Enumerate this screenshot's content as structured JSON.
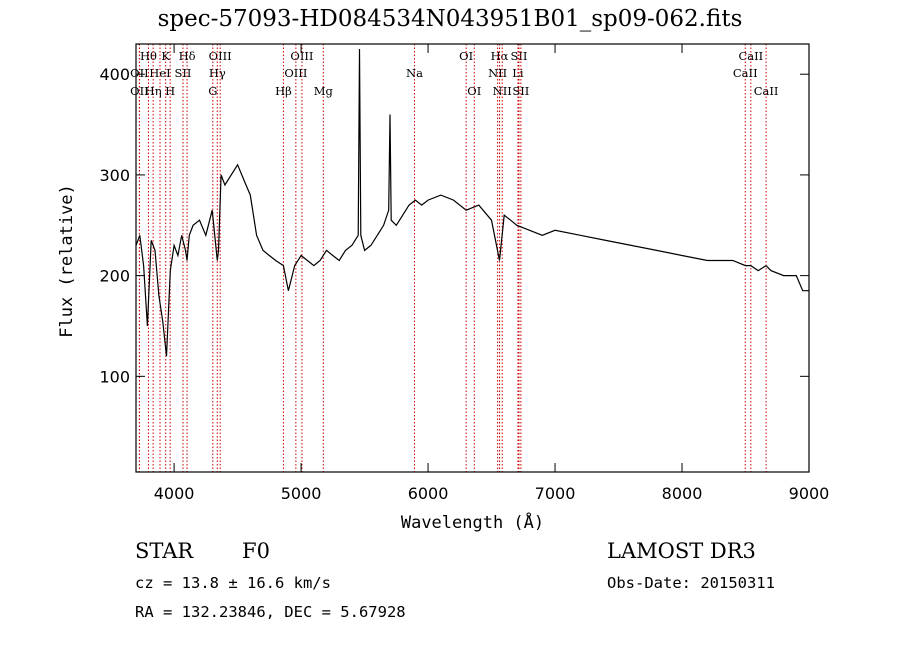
{
  "chart_data": {
    "type": "line",
    "title": "spec-57093-HD084534N043951B01_sp09-062.fits",
    "xlabel": "Wavelength (Å)",
    "ylabel": "Flux (relative)",
    "xlim": [
      3700,
      9000
    ],
    "ylim": [
      5,
      430
    ],
    "xticks": [
      4000,
      5000,
      6000,
      7000,
      8000,
      9000
    ],
    "yticks": [
      100,
      200,
      300,
      400
    ],
    "grid": false,
    "colors": {
      "spectrum": "#000000",
      "line_markers": "#cc0000"
    },
    "series": [
      {
        "x": [
          3700,
          3730,
          3760,
          3790,
          3820,
          3850,
          3880,
          3910,
          3940,
          3970,
          4000,
          4030,
          4060,
          4090,
          4102,
          4120,
          4150,
          4200,
          4250,
          4300,
          4340,
          4350,
          4370,
          4400,
          4450,
          4500,
          4550,
          4600,
          4650,
          4700,
          4750,
          4800,
          4861,
          4900,
          4950,
          5000,
          5050,
          5100,
          5150,
          5200,
          5250,
          5300,
          5350,
          5400,
          5450,
          5460,
          5470,
          5500,
          5550,
          5600,
          5650,
          5690,
          5700,
          5710,
          5750,
          5800,
          5850,
          5900,
          5950,
          6000,
          6100,
          6200,
          6300,
          6400,
          6500,
          6563,
          6600,
          6650,
          6700,
          6800,
          6900,
          7000,
          7200,
          7400,
          7600,
          7800,
          8000,
          8200,
          8400,
          8498,
          8542,
          8600,
          8662,
          8700,
          8800,
          8900,
          8950,
          9000
        ],
        "y": [
          230,
          240,
          210,
          150,
          235,
          225,
          180,
          155,
          120,
          205,
          230,
          220,
          240,
          225,
          215,
          240,
          250,
          255,
          240,
          265,
          215,
          225,
          300,
          290,
          300,
          310,
          295,
          280,
          240,
          225,
          220,
          215,
          210,
          185,
          210,
          220,
          215,
          210,
          215,
          225,
          220,
          215,
          225,
          230,
          240,
          425,
          240,
          225,
          230,
          240,
          250,
          265,
          360,
          255,
          250,
          260,
          270,
          275,
          270,
          275,
          280,
          275,
          265,
          270,
          255,
          215,
          260,
          255,
          250,
          245,
          240,
          245,
          240,
          235,
          230,
          225,
          220,
          215,
          215,
          210,
          210,
          205,
          210,
          205,
          200,
          200,
          185,
          185
        ]
      }
    ],
    "line_markers": [
      {
        "label": "Hθ",
        "x": 3798,
        "row": 1
      },
      {
        "label": "OII",
        "x": 3727,
        "row": 2
      },
      {
        "label": "OII",
        "x": 3727,
        "row": 3
      },
      {
        "label": "K",
        "x": 3934,
        "row": 1
      },
      {
        "label": "HeI",
        "x": 3889,
        "row": 2
      },
      {
        "label": "Hη",
        "x": 3835,
        "row": 3
      },
      {
        "label": "Hδ",
        "x": 4102,
        "row": 1
      },
      {
        "label": "SII",
        "x": 4070,
        "row": 2
      },
      {
        "label": "H",
        "x": 3969,
        "row": 3
      },
      {
        "label": "OIII",
        "x": 4363,
        "row": 1
      },
      {
        "label": "Hγ",
        "x": 4340,
        "row": 2
      },
      {
        "label": "G",
        "x": 4305,
        "row": 3
      },
      {
        "label": "OIII",
        "x": 5007,
        "row": 1
      },
      {
        "label": "OIII",
        "x": 4959,
        "row": 2
      },
      {
        "label": "Hβ",
        "x": 4861,
        "row": 3
      },
      {
        "label": "Mg",
        "x": 5175,
        "row": 3
      },
      {
        "label": "Na",
        "x": 5893,
        "row": 2
      },
      {
        "label": "OI",
        "x": 6300,
        "row": 1
      },
      {
        "label": "OI",
        "x": 6364,
        "row": 3
      },
      {
        "label": "Hα",
        "x": 6563,
        "row": 1
      },
      {
        "label": "SII",
        "x": 6716,
        "row": 1
      },
      {
        "label": "NII",
        "x": 6548,
        "row": 2
      },
      {
        "label": "Li",
        "x": 6708,
        "row": 2
      },
      {
        "label": "NII",
        "x": 6584,
        "row": 3
      },
      {
        "label": "SII",
        "x": 6731,
        "row": 3
      },
      {
        "label": "CaII",
        "x": 8542,
        "row": 1
      },
      {
        "label": "CaII",
        "x": 8498,
        "row": 2
      },
      {
        "label": "CaII",
        "x": 8662,
        "row": 3
      }
    ]
  },
  "info": {
    "class": "STAR",
    "subclass": "F0",
    "survey": "LAMOST DR3",
    "cz": "cz = 13.8 ± 16.6 km/s",
    "obs_date": "Obs-Date: 20150311",
    "radec": "RA = 132.23846, DEC =   5.67928"
  }
}
